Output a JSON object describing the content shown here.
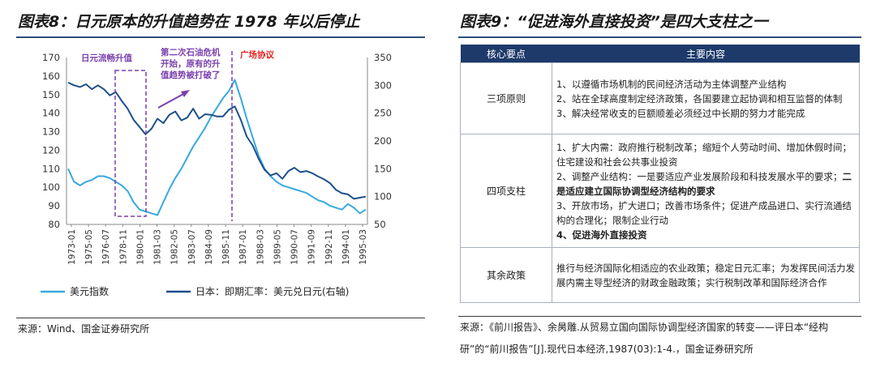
{
  "left": {
    "title": "图表8：日元原本的升值趋势在 1978 年以后停止",
    "source": "来源：Wind、国金证券研究所",
    "chart_data": {
      "type": "line",
      "y_left": {
        "min": 80,
        "max": 170,
        "ticks": [
          "80",
          "90",
          "100",
          "110",
          "120",
          "130",
          "140",
          "150",
          "160",
          "170"
        ]
      },
      "y_right": {
        "min": 50,
        "max": 350,
        "ticks": [
          "50",
          "100",
          "150",
          "200",
          "250",
          "300",
          "350"
        ]
      },
      "x_ticks": [
        "1973-01",
        "1975-05",
        "1976-07",
        "1978-11",
        "1980-01",
        "1981-03",
        "1982-05",
        "1983-07",
        "1984-09",
        "1985-11",
        "1987-01",
        "1988-03",
        "1989-05",
        "1990-07",
        "1991-09",
        "1992-11",
        "1994-01",
        "1995-03"
      ],
      "series": [
        {
          "name": "美元指数",
          "axis": "left",
          "color": "#38a8e0",
          "values": [
            110,
            103,
            101,
            103,
            104,
            106,
            106,
            105,
            103,
            101,
            98,
            92,
            88,
            87,
            86,
            85,
            92,
            99,
            105,
            110,
            116,
            122,
            127,
            132,
            138,
            143,
            148,
            152,
            158,
            148,
            137,
            127,
            117,
            110,
            106,
            103,
            101,
            100,
            99,
            98,
            97,
            95,
            93,
            92,
            90,
            89,
            88,
            91,
            89,
            86,
            88
          ]
        },
        {
          "name": "日本：即期汇率：美元兑日元(右轴)",
          "axis": "right",
          "color": "#1d4f8c",
          "values": [
            305,
            300,
            297,
            302,
            293,
            300,
            293,
            282,
            288,
            272,
            258,
            238,
            225,
            212,
            222,
            240,
            232,
            247,
            253,
            237,
            242,
            258,
            240,
            248,
            247,
            244,
            244,
            256,
            262,
            238,
            208,
            192,
            168,
            148,
            138,
            142,
            132,
            146,
            152,
            144,
            146,
            142,
            136,
            131,
            124,
            112,
            106,
            104,
            96,
            98,
            100
          ]
        }
      ],
      "annotations": [
        {
          "text": "日元流畅升值",
          "color": "#7a3fae"
        },
        {
          "text": "第二次石油危机",
          "color": "#7a3fae"
        },
        {
          "text": "开始，原有的升",
          "color": "#7a3fae"
        },
        {
          "text": "值趋势被打破了",
          "color": "#7a3fae"
        },
        {
          "text": "广场协议",
          "color": "#e02020"
        }
      ]
    }
  },
  "right": {
    "title": "图表9：“促进海外直接投资”是四大支柱之一",
    "headers": [
      "核心要点",
      "主要内容"
    ],
    "rows": [
      {
        "key": "三项原则",
        "lines": [
          {
            "text": "1、以遵循市场机制的民间经济活动为主体调整产业结构",
            "bold": false
          },
          {
            "text": "2、站在全球高度制定经济政策，各国要建立起协调和相互监督的体制",
            "bold": false
          },
          {
            "text": "3、解决经常收支的巨额顺差必须经过中长期的努力才能完成",
            "bold": false
          }
        ]
      },
      {
        "key": "四项支柱",
        "lines": [
          {
            "text": "1、扩大内需：政府推行税制改革；缩短个人劳动时间、增加休假时间；住宅建设和社会公共事业投资",
            "bold": false
          },
          {
            "text": "2、调整产业结构：一是要适应产业发展阶段和科技发展水平的要求；",
            "bold": false,
            "tail": "二是适应建立国际协调型经济结构的要求"
          },
          {
            "text": "3、开放市场，扩大进口；改善市场条件；促进产成品进口、实行流通结构的合理化；限制企业行动",
            "bold": false
          },
          {
            "text": "4、促进海外直接投资",
            "bold": true
          }
        ]
      },
      {
        "key": "其余政策",
        "lines": [
          {
            "text": "推行与经济国际化相适应的农业政策；稳定日元汇率；为发挥民间活力发展内需主导型经济的财政金融政策；实行税制改革和国际经济合作",
            "bold": false
          }
        ]
      }
    ],
    "source": "来源：《前川报告》、余昺雕.从贸易立国向国际协调型经济国家的转变——评日本“经构研”的“前川报告”[J].现代日本经济,1987(03):1-4.，国金证券研究所"
  }
}
